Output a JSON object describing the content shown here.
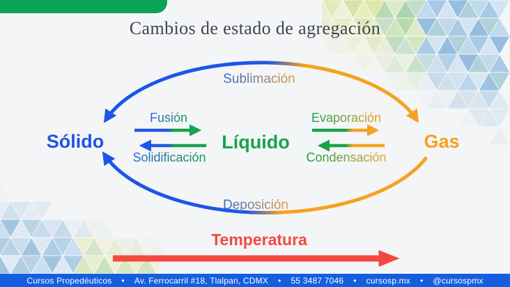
{
  "slide": {
    "title": "Cambios de estado de agregación"
  },
  "diagram": {
    "states": {
      "solid": "Sólido",
      "liquid": "Líquido",
      "gas": "Gas"
    },
    "transitions": {
      "sublimation": "Sublimación",
      "deposition": "Deposición",
      "fusion": "Fusión",
      "solidification": "Solidificación",
      "evaporation": "Evaporación",
      "condensation": "Condensación"
    },
    "temperature_label": "Temperatura"
  },
  "colors": {
    "solid_blue": "#1d55e6",
    "liquid_green": "#17a34c",
    "gas_orange": "#f5a01d",
    "temperature_red": "#f2493f",
    "footer_blue": "#135fe0",
    "header_green": "#08a356"
  },
  "footer": {
    "separator": "•",
    "items": [
      "Cursos Propedéuticos",
      "Av. Ferrocarril #18, Tlalpan, CDMX",
      "55 3487 7046",
      "cursosp.mx",
      "@cursospmx"
    ]
  }
}
